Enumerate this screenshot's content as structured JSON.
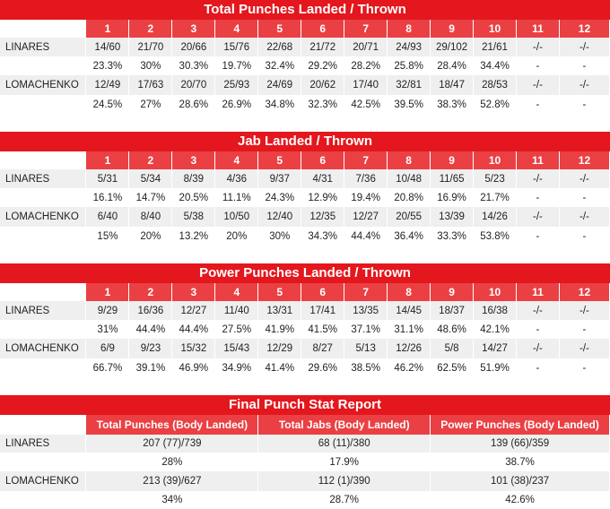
{
  "round_headers": [
    "1",
    "2",
    "3",
    "4",
    "5",
    "6",
    "7",
    "8",
    "9",
    "10",
    "11",
    "12"
  ],
  "tables": [
    {
      "title": "Total Punches Landed / Thrown",
      "fighters": [
        {
          "name": "LINARES",
          "landed_thrown": [
            "14/60",
            "21/70",
            "20/66",
            "15/76",
            "22/68",
            "21/72",
            "20/71",
            "24/93",
            "29/102",
            "21/61",
            "-/-",
            "-/-"
          ],
          "percent": [
            "23.3%",
            "30%",
            "30.3%",
            "19.7%",
            "32.4%",
            "29.2%",
            "28.2%",
            "25.8%",
            "28.4%",
            "34.4%",
            "-",
            "-"
          ]
        },
        {
          "name": "LOMACHENKO",
          "landed_thrown": [
            "12/49",
            "17/63",
            "20/70",
            "25/93",
            "24/69",
            "20/62",
            "17/40",
            "32/81",
            "18/47",
            "28/53",
            "-/-",
            "-/-"
          ],
          "percent": [
            "24.5%",
            "27%",
            "28.6%",
            "26.9%",
            "34.8%",
            "32.3%",
            "42.5%",
            "39.5%",
            "38.3%",
            "52.8%",
            "-",
            "-"
          ]
        }
      ]
    },
    {
      "title": "Jab Landed / Thrown",
      "fighters": [
        {
          "name": "LINARES",
          "landed_thrown": [
            "5/31",
            "5/34",
            "8/39",
            "4/36",
            "9/37",
            "4/31",
            "7/36",
            "10/48",
            "11/65",
            "5/23",
            "-/-",
            "-/-"
          ],
          "percent": [
            "16.1%",
            "14.7%",
            "20.5%",
            "11.1%",
            "24.3%",
            "12.9%",
            "19.4%",
            "20.8%",
            "16.9%",
            "21.7%",
            "-",
            "-"
          ]
        },
        {
          "name": "LOMACHENKO",
          "landed_thrown": [
            "6/40",
            "8/40",
            "5/38",
            "10/50",
            "12/40",
            "12/35",
            "12/27",
            "20/55",
            "13/39",
            "14/26",
            "-/-",
            "-/-"
          ],
          "percent": [
            "15%",
            "20%",
            "13.2%",
            "20%",
            "30%",
            "34.3%",
            "44.4%",
            "36.4%",
            "33.3%",
            "53.8%",
            "-",
            "-"
          ]
        }
      ]
    },
    {
      "title": "Power Punches Landed / Thrown",
      "fighters": [
        {
          "name": "LINARES",
          "landed_thrown": [
            "9/29",
            "16/36",
            "12/27",
            "11/40",
            "13/31",
            "17/41",
            "13/35",
            "14/45",
            "18/37",
            "16/38",
            "-/-",
            "-/-"
          ],
          "percent": [
            "31%",
            "44.4%",
            "44.4%",
            "27.5%",
            "41.9%",
            "41.5%",
            "37.1%",
            "31.1%",
            "48.6%",
            "42.1%",
            "-",
            "-"
          ]
        },
        {
          "name": "LOMACHENKO",
          "landed_thrown": [
            "6/9",
            "9/23",
            "15/32",
            "15/43",
            "12/29",
            "8/27",
            "5/13",
            "12/26",
            "5/8",
            "14/27",
            "-/-",
            "-/-"
          ],
          "percent": [
            "66.7%",
            "39.1%",
            "46.9%",
            "34.9%",
            "41.4%",
            "29.6%",
            "38.5%",
            "46.2%",
            "62.5%",
            "51.9%",
            "-",
            "-"
          ]
        }
      ]
    }
  ],
  "final": {
    "title": "Final Punch Stat Report",
    "headers": [
      "Total Punches (Body Landed)",
      "Total Jabs (Body Landed)",
      "Power Punches (Body Landed)"
    ],
    "fighters": [
      {
        "name": "LINARES",
        "values": [
          "207 (77)/739",
          "68 (11)/380",
          "139 (66)/359"
        ],
        "percent": [
          "28%",
          "17.9%",
          "38.7%"
        ]
      },
      {
        "name": "LOMACHENKO",
        "values": [
          "213 (39)/627",
          "112 (1)/390",
          "101 (38)/237"
        ],
        "percent": [
          "34%",
          "28.7%",
          "42.6%"
        ]
      }
    ]
  },
  "colors": {
    "title_red": "#e3171d",
    "header_red": "#ea4044",
    "row_gray": "#efefef"
  }
}
